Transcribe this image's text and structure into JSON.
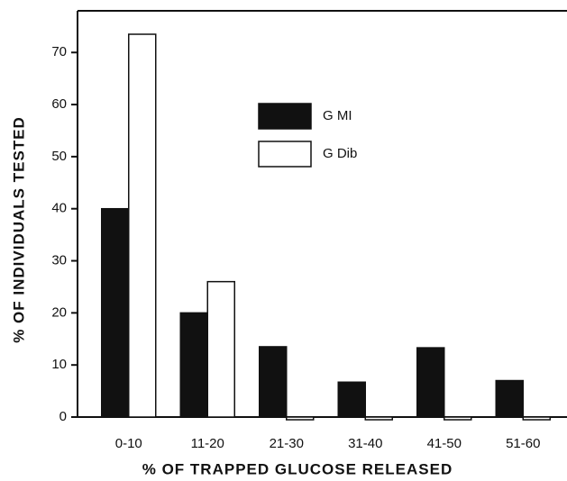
{
  "chart_data": {
    "type": "bar",
    "x_label": "% OF TRAPPED GLUCOSE RELEASED",
    "y_label": "% OF INDIVIDUALS TESTED",
    "categories": [
      "0-10",
      "11-20",
      "21-30",
      "31-40",
      "41-50",
      "51-60"
    ],
    "series": [
      {
        "name": "G MI",
        "color": "#111111",
        "values": [
          40,
          20,
          13.5,
          6.7,
          13.3,
          7
        ]
      },
      {
        "name": "G Dib",
        "color": "#ffffff",
        "values": [
          73.5,
          26,
          0,
          0,
          0,
          0
        ]
      }
    ],
    "ylim": [
      0,
      78
    ],
    "yticks": [
      0,
      10,
      20,
      30,
      40,
      50,
      60,
      70
    ]
  }
}
